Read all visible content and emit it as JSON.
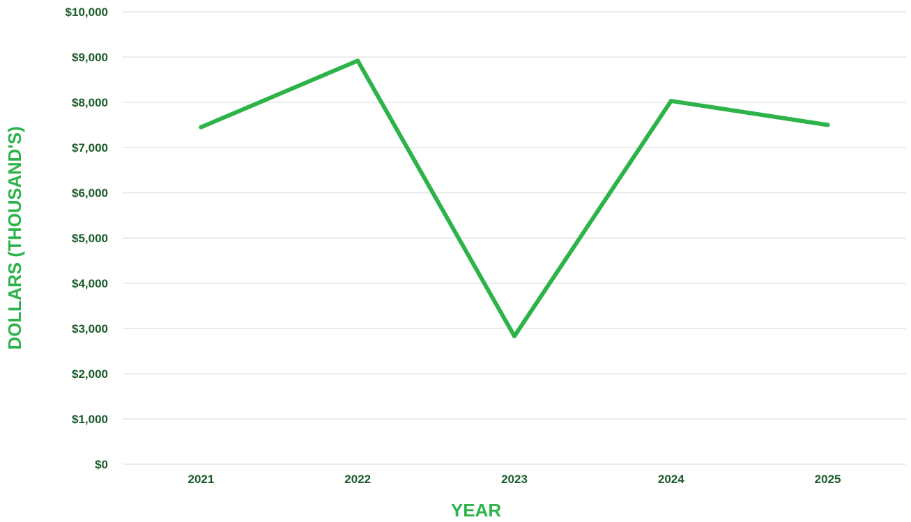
{
  "chart_data": {
    "type": "line",
    "title": "",
    "xlabel": "YEAR",
    "ylabel": "DOLLARS (THOUSAND'S)",
    "categories": [
      "2021",
      "2022",
      "2023",
      "2024",
      "2025"
    ],
    "series": [
      {
        "values": [
          7450,
          8920,
          2830,
          8030,
          7500
        ]
      }
    ],
    "ylim": [
      0,
      10000
    ],
    "yticks": [
      0,
      1000,
      2000,
      3000,
      4000,
      5000,
      6000,
      7000,
      8000,
      9000,
      10000
    ],
    "ytick_labels": [
      "$0",
      "$1,000",
      "$2,000",
      "$3,000",
      "$4,000",
      "$5,000",
      "$6,000",
      "$7,000",
      "$8,000",
      "$9,000",
      "$10,000"
    ],
    "grid": true,
    "legend": "none"
  },
  "colors": {
    "line": "#2db34a",
    "tick_text": "#1a5c2a",
    "axis_title": "#2db34a",
    "gridline": "#d9d9d9"
  }
}
